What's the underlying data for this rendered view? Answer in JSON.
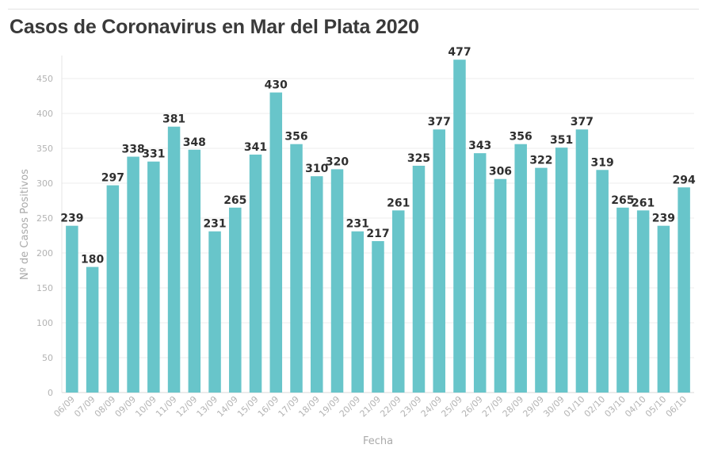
{
  "title": "Casos de Coronavirus en Mar del Plata 2020",
  "colors": {
    "bar": "#68c5ca",
    "grid": "#ededed",
    "text": "#2f2f2f"
  },
  "chart_data": {
    "type": "bar",
    "title": "Casos de Coronavirus en Mar del Plata 2020",
    "xlabel": "Fecha",
    "ylabel": "Nº de Casos Positivos",
    "ylim": [
      0,
      480
    ],
    "yticks": [
      0,
      50,
      100,
      150,
      200,
      250,
      300,
      350,
      400,
      450
    ],
    "grid": true,
    "categories": [
      "06/09",
      "07/09",
      "08/09",
      "09/09",
      "10/09",
      "11/09",
      "12/09",
      "13/09",
      "14/09",
      "15/09",
      "16/09",
      "17/09",
      "18/09",
      "19/09",
      "20/09",
      "21/09",
      "22/09",
      "23/09",
      "24/09",
      "25/09",
      "26/09",
      "27/09",
      "28/09",
      "29/09",
      "30/09",
      "01/10",
      "02/10",
      "03/10",
      "04/10",
      "05/10",
      "06/10"
    ],
    "values": [
      239,
      180,
      297,
      338,
      331,
      381,
      348,
      231,
      265,
      341,
      430,
      356,
      310,
      320,
      231,
      217,
      261,
      325,
      377,
      477,
      343,
      306,
      356,
      322,
      351,
      377,
      319,
      265,
      261,
      239,
      294
    ]
  }
}
